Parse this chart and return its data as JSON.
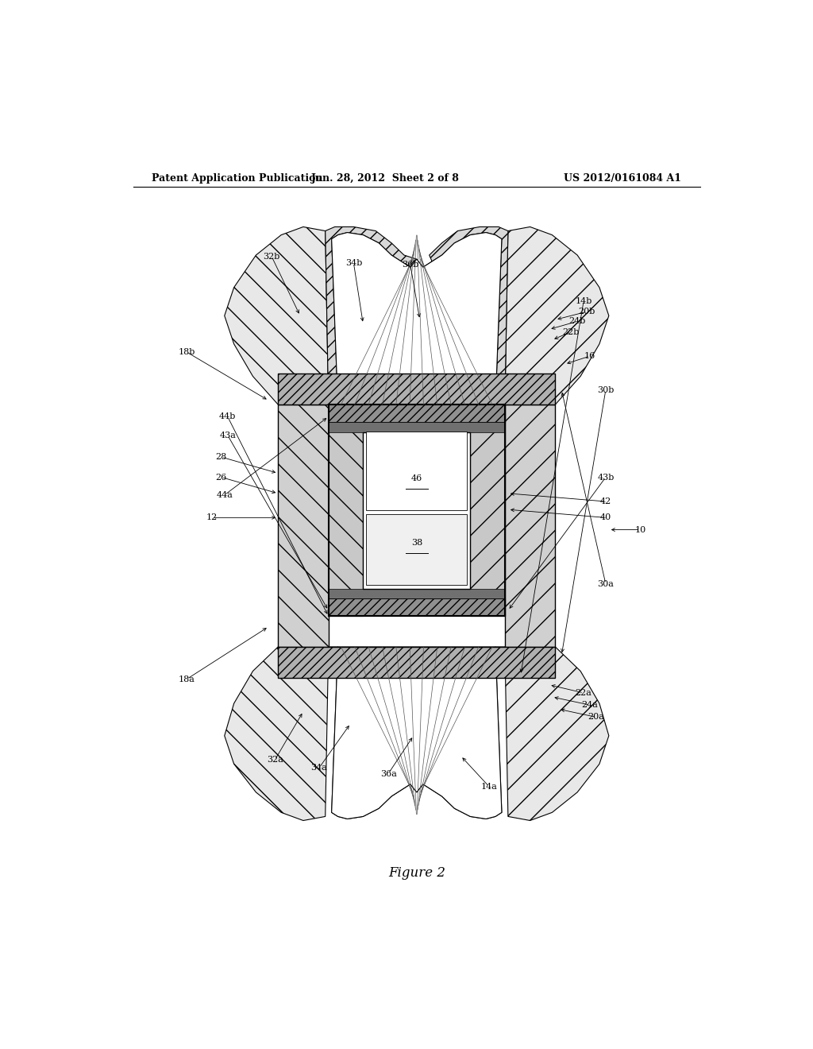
{
  "header_left": "Patent Application Publication",
  "header_center": "Jun. 28, 2012  Sheet 2 of 8",
  "header_right": "US 2012/0161084 A1",
  "figure_label": "Figure 2",
  "bg_color": "#ffffff",
  "line_color": "#000000"
}
